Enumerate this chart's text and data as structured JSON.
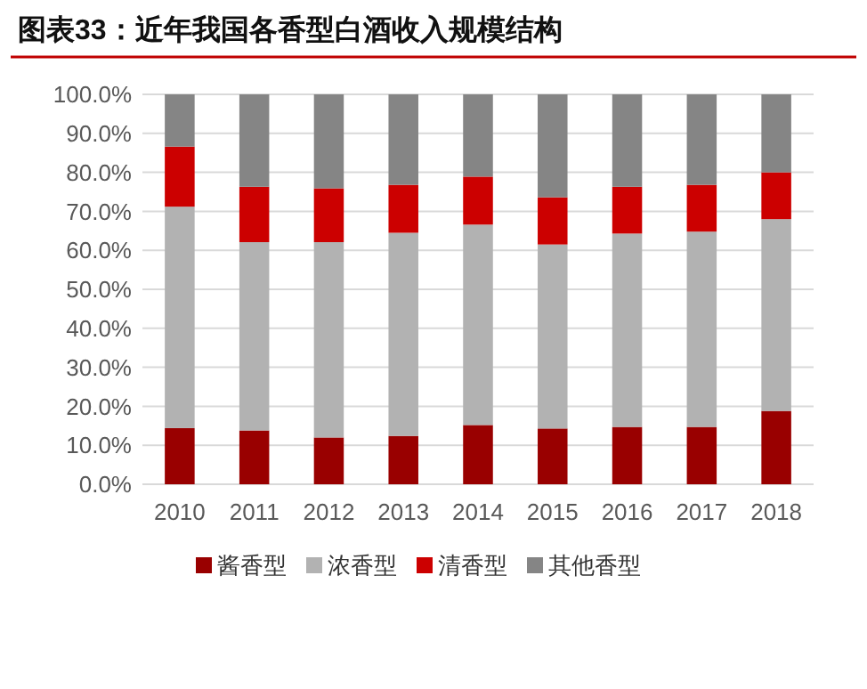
{
  "chart_data": {
    "type": "bar",
    "title": "图表33：近年我国各香型白酒收入规模结构",
    "stacked": true,
    "categories": [
      "2010",
      "2011",
      "2012",
      "2013",
      "2014",
      "2015",
      "2016",
      "2017",
      "2018"
    ],
    "series": [
      {
        "name": "酱香型",
        "color": "#990000",
        "values": [
          14.4,
          13.8,
          12.0,
          12.4,
          15.2,
          14.3,
          14.7,
          14.7,
          18.8
        ]
      },
      {
        "name": "浓香型",
        "color": "#b2b2b2",
        "values": [
          56.8,
          48.3,
          50.1,
          52.1,
          51.4,
          47.2,
          49.6,
          50.1,
          49.2
        ]
      },
      {
        "name": "清香型",
        "color": "#cc0000",
        "values": [
          15.4,
          14.2,
          13.8,
          12.3,
          12.3,
          12.1,
          12.0,
          12.0,
          12.0
        ]
      },
      {
        "name": "其他香型",
        "color": "#858585",
        "values": [
          13.4,
          23.7,
          24.1,
          23.2,
          21.1,
          26.4,
          23.7,
          23.2,
          20.0
        ]
      }
    ],
    "ylim": [
      0,
      100
    ],
    "yticks": [
      {
        "value": 0,
        "label": "0.0%"
      },
      {
        "value": 10,
        "label": "10.0%"
      },
      {
        "value": 20,
        "label": "20.0%"
      },
      {
        "value": 30,
        "label": "30.0%"
      },
      {
        "value": 40,
        "label": "40.0%"
      },
      {
        "value": 50,
        "label": "50.0%"
      },
      {
        "value": 60,
        "label": "60.0%"
      },
      {
        "value": 70,
        "label": "70.0%"
      },
      {
        "value": 80,
        "label": "80.0%"
      },
      {
        "value": 90,
        "label": "90.0%"
      },
      {
        "value": 100,
        "label": "100.0%"
      }
    ],
    "grid": "y",
    "legend": "bottom"
  }
}
